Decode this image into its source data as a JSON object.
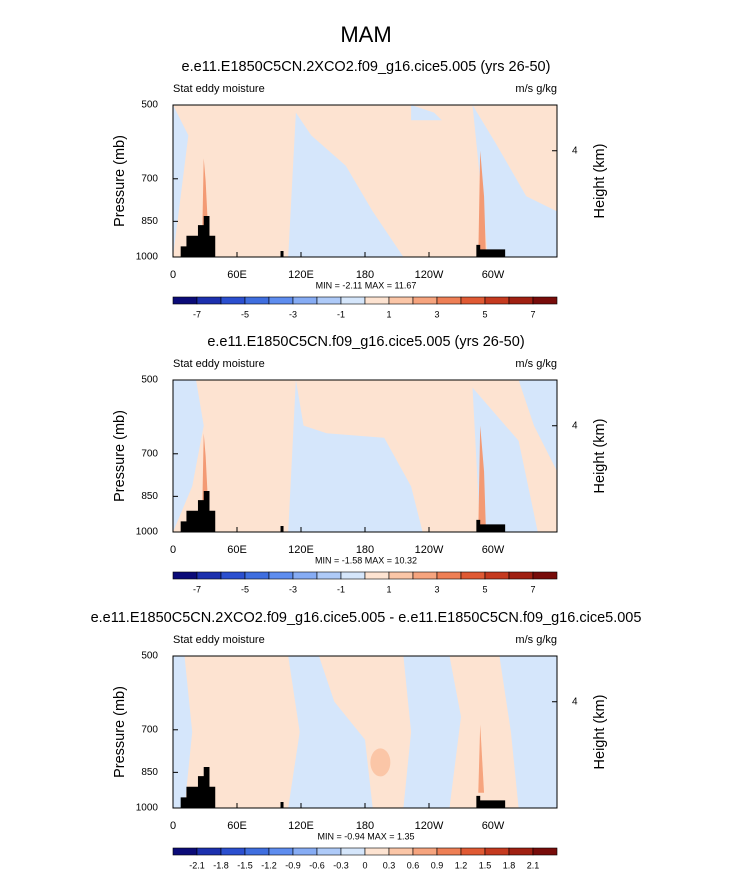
{
  "title": "MAM",
  "chart_data": [
    {
      "type": "contour",
      "title": "e.e11.E1850C5CN.2XCO2.f09_g16.cice5.005 (yrs 26-50)",
      "left_label": "Stat eddy moisture",
      "right_label": "m/s g/kg",
      "ylabel": "Pressure (mb)",
      "y2label": "Height (km)",
      "xlim": [
        0,
        360
      ],
      "xticks": [
        0,
        {
          "value": 60,
          "label": "60E"
        },
        {
          "value": 120,
          "label": "120E"
        },
        180,
        {
          "value": 240,
          "label": "120W"
        },
        {
          "value": 300,
          "label": "60W"
        }
      ],
      "ylim": [
        1000,
        500
      ],
      "ylog": true,
      "yticks": [
        500,
        700,
        850,
        1000
      ],
      "y2ticks": [
        4
      ],
      "stats": "MIN = -2.11  MAX = 11.67",
      "colorbar": {
        "lim": [
          -8,
          8
        ],
        "ticks": [
          -7,
          -5,
          -3,
          -1,
          1,
          3,
          5,
          7
        ],
        "colors": [
          "#0b0b78",
          "#1c30ae",
          "#2b4fcf",
          "#3f6edf",
          "#5e8def",
          "#86acf4",
          "#aecaf8",
          "#d5e6fb",
          "#fde3d1",
          "#fbc6a7",
          "#f6a47e",
          "#ee7f55",
          "#e05a34",
          "#c53a1f",
          "#a02012",
          "#780c0a"
        ]
      }
    },
    {
      "type": "contour",
      "title": "e.e11.E1850C5CN.f09_g16.cice5.005 (yrs 26-50)",
      "left_label": "Stat eddy moisture",
      "right_label": "m/s g/kg",
      "ylabel": "Pressure (mb)",
      "y2label": "Height (km)",
      "xlim": [
        0,
        360
      ],
      "xticks": [
        0,
        {
          "value": 60,
          "label": "60E"
        },
        {
          "value": 120,
          "label": "120E"
        },
        180,
        {
          "value": 240,
          "label": "120W"
        },
        {
          "value": 300,
          "label": "60W"
        }
      ],
      "ylim": [
        1000,
        500
      ],
      "ylog": true,
      "yticks": [
        500,
        700,
        850,
        1000
      ],
      "y2ticks": [
        4
      ],
      "stats": "MIN = -1.58  MAX = 10.32",
      "colorbar": {
        "lim": [
          -8,
          8
        ],
        "ticks": [
          -7,
          -5,
          -3,
          -1,
          1,
          3,
          5,
          7
        ],
        "colors": [
          "#0b0b78",
          "#1c30ae",
          "#2b4fcf",
          "#3f6edf",
          "#5e8def",
          "#86acf4",
          "#aecaf8",
          "#d5e6fb",
          "#fde3d1",
          "#fbc6a7",
          "#f6a47e",
          "#ee7f55",
          "#e05a34",
          "#c53a1f",
          "#a02012",
          "#780c0a"
        ]
      }
    },
    {
      "type": "contour",
      "title": "e.e11.E1850C5CN.2XCO2.f09_g16.cice5.005 - e.e11.E1850C5CN.f09_g16.cice5.005",
      "left_label": "Stat eddy moisture",
      "right_label": "m/s g/kg",
      "ylabel": "Pressure (mb)",
      "y2label": "Height (km)",
      "xlim": [
        0,
        360
      ],
      "xticks": [
        0,
        {
          "value": 60,
          "label": "60E"
        },
        {
          "value": 120,
          "label": "120E"
        },
        180,
        {
          "value": 240,
          "label": "120W"
        },
        {
          "value": 300,
          "label": "60W"
        }
      ],
      "ylim": [
        1000,
        500
      ],
      "ylog": true,
      "yticks": [
        500,
        700,
        850,
        1000
      ],
      "y2ticks": [
        4
      ],
      "stats": "MIN = -0.94  MAX =  1.35",
      "colorbar": {
        "lim": [
          -2.4,
          2.4
        ],
        "ticks": [
          -2.1,
          -1.8,
          -1.5,
          -1.2,
          -0.9,
          -0.6,
          -0.3,
          0,
          0.3,
          0.6,
          0.9,
          1.2,
          1.5,
          1.8,
          2.1
        ],
        "colors": [
          "#0b0b78",
          "#1c30ae",
          "#2b4fcf",
          "#3f6edf",
          "#5e8def",
          "#86acf4",
          "#aecaf8",
          "#d5e6fb",
          "#fde3d1",
          "#fbc6a7",
          "#f6a47e",
          "#ee7f55",
          "#e05a34",
          "#c53a1f",
          "#a02012",
          "#780c0a"
        ]
      }
    }
  ]
}
